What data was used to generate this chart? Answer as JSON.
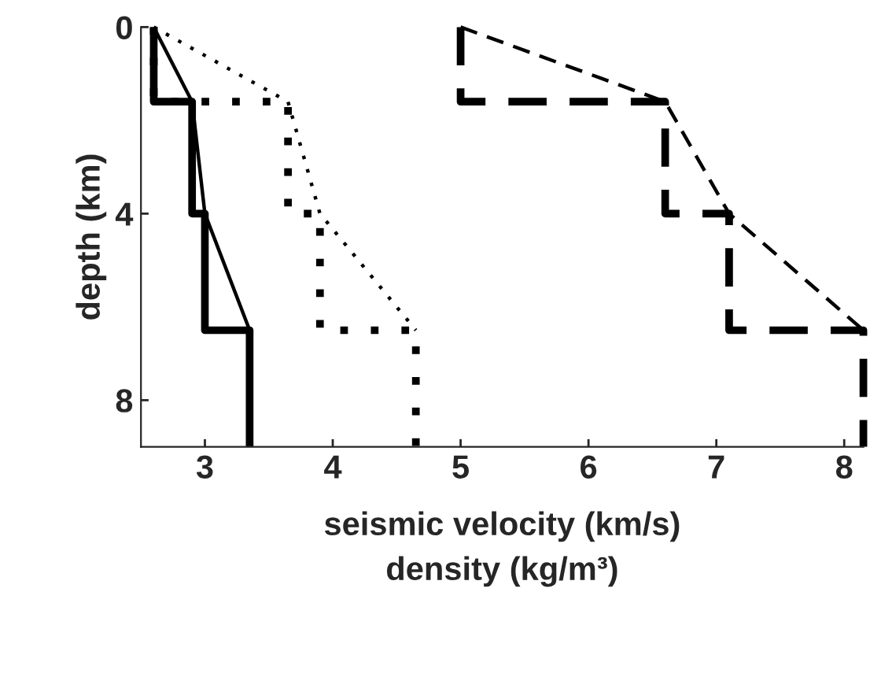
{
  "chart_data": {
    "type": "line",
    "xlabel": "seismic velocity (km/s)\ndensity (kg/m³)",
    "ylabel": "depth (km)",
    "xlim": [
      2.5,
      8.15
    ],
    "xticks": [
      3,
      4,
      5,
      6,
      7,
      8
    ],
    "ylim": [
      9,
      0
    ],
    "yticks": [
      0,
      4,
      8
    ],
    "grid": false,
    "legend": false,
    "marker": "none",
    "series": [
      {
        "type": "step",
        "color": "#000000",
        "line_style": "solid",
        "x": [
          2.6,
          2.6,
          2.9,
          2.9,
          3.0,
          3.0,
          3.35,
          3.35
        ],
        "values": [
          0,
          1.6,
          1.6,
          4,
          4,
          6.5,
          6.5,
          9
        ]
      },
      {
        "color": "#000000",
        "line_style": "solid",
        "x": [
          2.6,
          2.9,
          3.0,
          3.35
        ],
        "values": [
          0,
          1.6,
          4,
          6.5
        ]
      },
      {
        "type": "step",
        "color": "#000000",
        "line_style": "dotted",
        "x": [
          2.6,
          2.6,
          3.65,
          3.65,
          3.9,
          3.9,
          4.65,
          4.65
        ],
        "values": [
          0,
          1.6,
          1.6,
          4,
          4,
          6.5,
          6.5,
          9
        ]
      },
      {
        "color": "#000000",
        "line_style": "dotted",
        "x": [
          2.6,
          3.65,
          3.9,
          4.65
        ],
        "values": [
          0,
          1.6,
          4,
          6.5
        ]
      },
      {
        "type": "step",
        "color": "#000000",
        "line_style": "dashed",
        "x": [
          5.0,
          5.0,
          6.6,
          6.6,
          7.1,
          7.1,
          8.15,
          8.15
        ],
        "values": [
          0,
          1.6,
          1.6,
          4,
          4,
          6.5,
          6.5,
          9
        ]
      },
      {
        "color": "#000000",
        "line_style": "dashed",
        "x": [
          5.0,
          6.6,
          7.1,
          8.15
        ],
        "values": [
          0,
          1.6,
          4,
          6.5
        ]
      }
    ]
  }
}
